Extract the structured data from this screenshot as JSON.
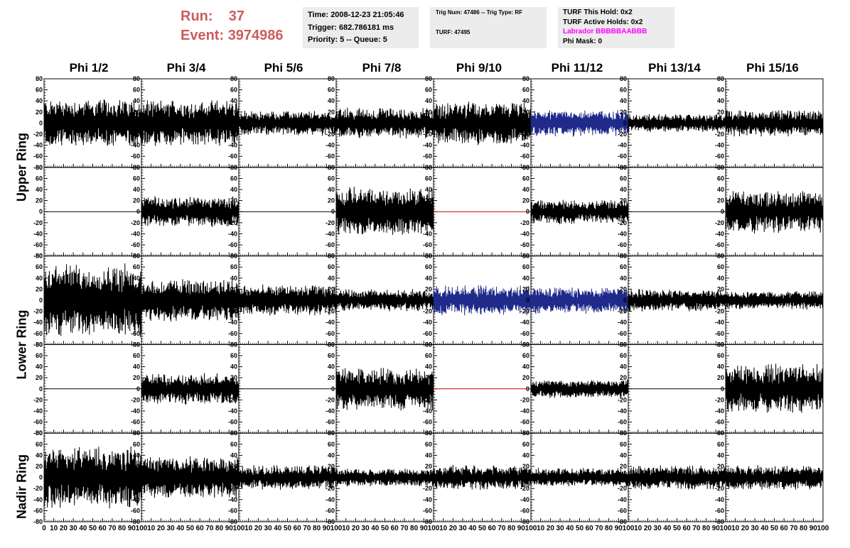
{
  "run": {
    "run_label": "Run:",
    "run_value": "37",
    "event_label": "Event:",
    "event_value": "3974986"
  },
  "time_box": {
    "time": "Time: 2008-12-23 21:05:46",
    "trigger": "Trigger: 682.786181 ms",
    "priority": "Priority: 5 -- Queue: 5"
  },
  "trig_box": {
    "line1": "Trig Num: 47486 -- Trig Type: RF",
    "line2": "TURF: 47495"
  },
  "turf_box": {
    "hold": "TURF This Hold: 0x2",
    "active": "TURF Active Holds: 0x2",
    "labrador": "Labrador BBBBBAABBB",
    "phimask": "Phi Mask: 0"
  },
  "columns": [
    "Phi 1/2",
    "Phi 3/4",
    "Phi 5/6",
    "Phi 7/8",
    "Phi 9/10",
    "Phi 11/12",
    "Phi 13/14",
    "Phi 15/16"
  ],
  "ring_labels": [
    "Upper Ring",
    "Lower Ring",
    "Nadir Ring"
  ],
  "colors": {
    "run_text": "#cd5c5c",
    "labrador": "#ff00ff",
    "trace_black": "#000000",
    "trace_blue": "#1f2a8a",
    "trace_red": "#cc0000",
    "info_bg": "#ececec"
  },
  "chart_data": {
    "type": "line",
    "description_of_values": "ADC waveforms per antenna panel; values are amplitude envelopes (peak |mV|) estimated from each trace",
    "xlim": [
      0,
      100
    ],
    "ylim": [
      -80,
      80
    ],
    "y_ticks": [
      -80,
      -60,
      -40,
      -20,
      0,
      20,
      40,
      60,
      80
    ],
    "x_tick_labels": [
      "0",
      "10",
      "20",
      "30",
      "40",
      "50",
      "60",
      "70",
      "80",
      "90",
      "100"
    ],
    "panels": [
      [
        {
          "amp": 40,
          "color": "black"
        },
        {
          "amp": 38,
          "color": "black"
        },
        {
          "amp": 20,
          "color": "black"
        },
        {
          "amp": 25,
          "color": "black"
        },
        {
          "amp": 35,
          "color": "black"
        },
        {
          "amp": 22,
          "color": "blue"
        },
        {
          "amp": 15,
          "color": "black"
        },
        {
          "amp": 22,
          "color": "black"
        }
      ],
      [
        {
          "amp": 0,
          "color": "black"
        },
        {
          "amp": 25,
          "color": "black"
        },
        {
          "amp": 0,
          "color": "black"
        },
        {
          "amp": 40,
          "color": "black"
        },
        {
          "amp": 0,
          "color": "red"
        },
        {
          "amp": 20,
          "color": "black"
        },
        {
          "amp": 0,
          "color": "black"
        },
        {
          "amp": 35,
          "color": "black"
        }
      ],
      [
        {
          "amp": 60,
          "color": "black"
        },
        {
          "amp": 35,
          "color": "black"
        },
        {
          "amp": 25,
          "color": "black"
        },
        {
          "amp": 18,
          "color": "black"
        },
        {
          "amp": 25,
          "color": "blue"
        },
        {
          "amp": 22,
          "color": "blue"
        },
        {
          "amp": 18,
          "color": "black"
        },
        {
          "amp": 15,
          "color": "black"
        }
      ],
      [
        {
          "amp": 0,
          "color": "black"
        },
        {
          "amp": 25,
          "color": "black"
        },
        {
          "amp": 0,
          "color": "black"
        },
        {
          "amp": 35,
          "color": "black"
        },
        {
          "amp": 0,
          "color": "red"
        },
        {
          "amp": 15,
          "color": "black"
        },
        {
          "amp": 0,
          "color": "black"
        },
        {
          "amp": 40,
          "color": "black"
        }
      ],
      [
        {
          "amp": 50,
          "color": "black"
        },
        {
          "amp": 35,
          "color": "black"
        },
        {
          "amp": 20,
          "color": "black"
        },
        {
          "amp": 15,
          "color": "black"
        },
        {
          "amp": 20,
          "color": "black"
        },
        {
          "amp": 15,
          "color": "black"
        },
        {
          "amp": 20,
          "color": "black"
        },
        {
          "amp": 20,
          "color": "black"
        }
      ]
    ]
  }
}
